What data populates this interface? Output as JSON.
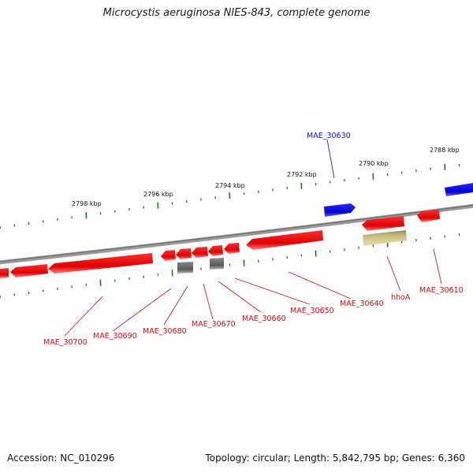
{
  "title": "Microcystis aeruginosa NIES-843, complete genome",
  "footer": {
    "accession": "Accession: NC_010296",
    "summary": "Topology: circular; Length: 5,842,795 bp; Genes: 6,360"
  },
  "ticks": [
    "2798 kbp",
    "2796 kbp",
    "2794 kbp",
    "2792 kbp",
    "2790 kbp",
    "2788 kbp"
  ],
  "genes": [
    {
      "name": "MAE_30630",
      "strand": "+",
      "color": "#0000cc"
    },
    {
      "name": "MAE_30610",
      "strand": "-",
      "color": "#cc0000"
    },
    {
      "name": "hhoA",
      "strand": "-",
      "color": "#cc0000"
    },
    {
      "name": "MAE_30640",
      "strand": "-",
      "color": "#cc0000"
    },
    {
      "name": "MAE_30650",
      "strand": "-",
      "color": "#cc0000"
    },
    {
      "name": "MAE_30660",
      "strand": "-",
      "color": "#cc0000"
    },
    {
      "name": "MAE_30670",
      "strand": "-",
      "color": "#cc0000"
    },
    {
      "name": "MAE_30680",
      "strand": "-",
      "color": "#cc0000"
    },
    {
      "name": "MAE_30690",
      "strand": "-",
      "color": "#cc0000"
    },
    {
      "name": "MAE_30700",
      "strand": "-",
      "color": "#cc0000"
    }
  ],
  "colors": {
    "plus_strand": "#1010dd",
    "minus_strand": "#ee1111",
    "rna": "#777777",
    "other_feature": "#b8ad6a",
    "backbone": "#808080",
    "tick_mark": "#1a7a1a"
  }
}
